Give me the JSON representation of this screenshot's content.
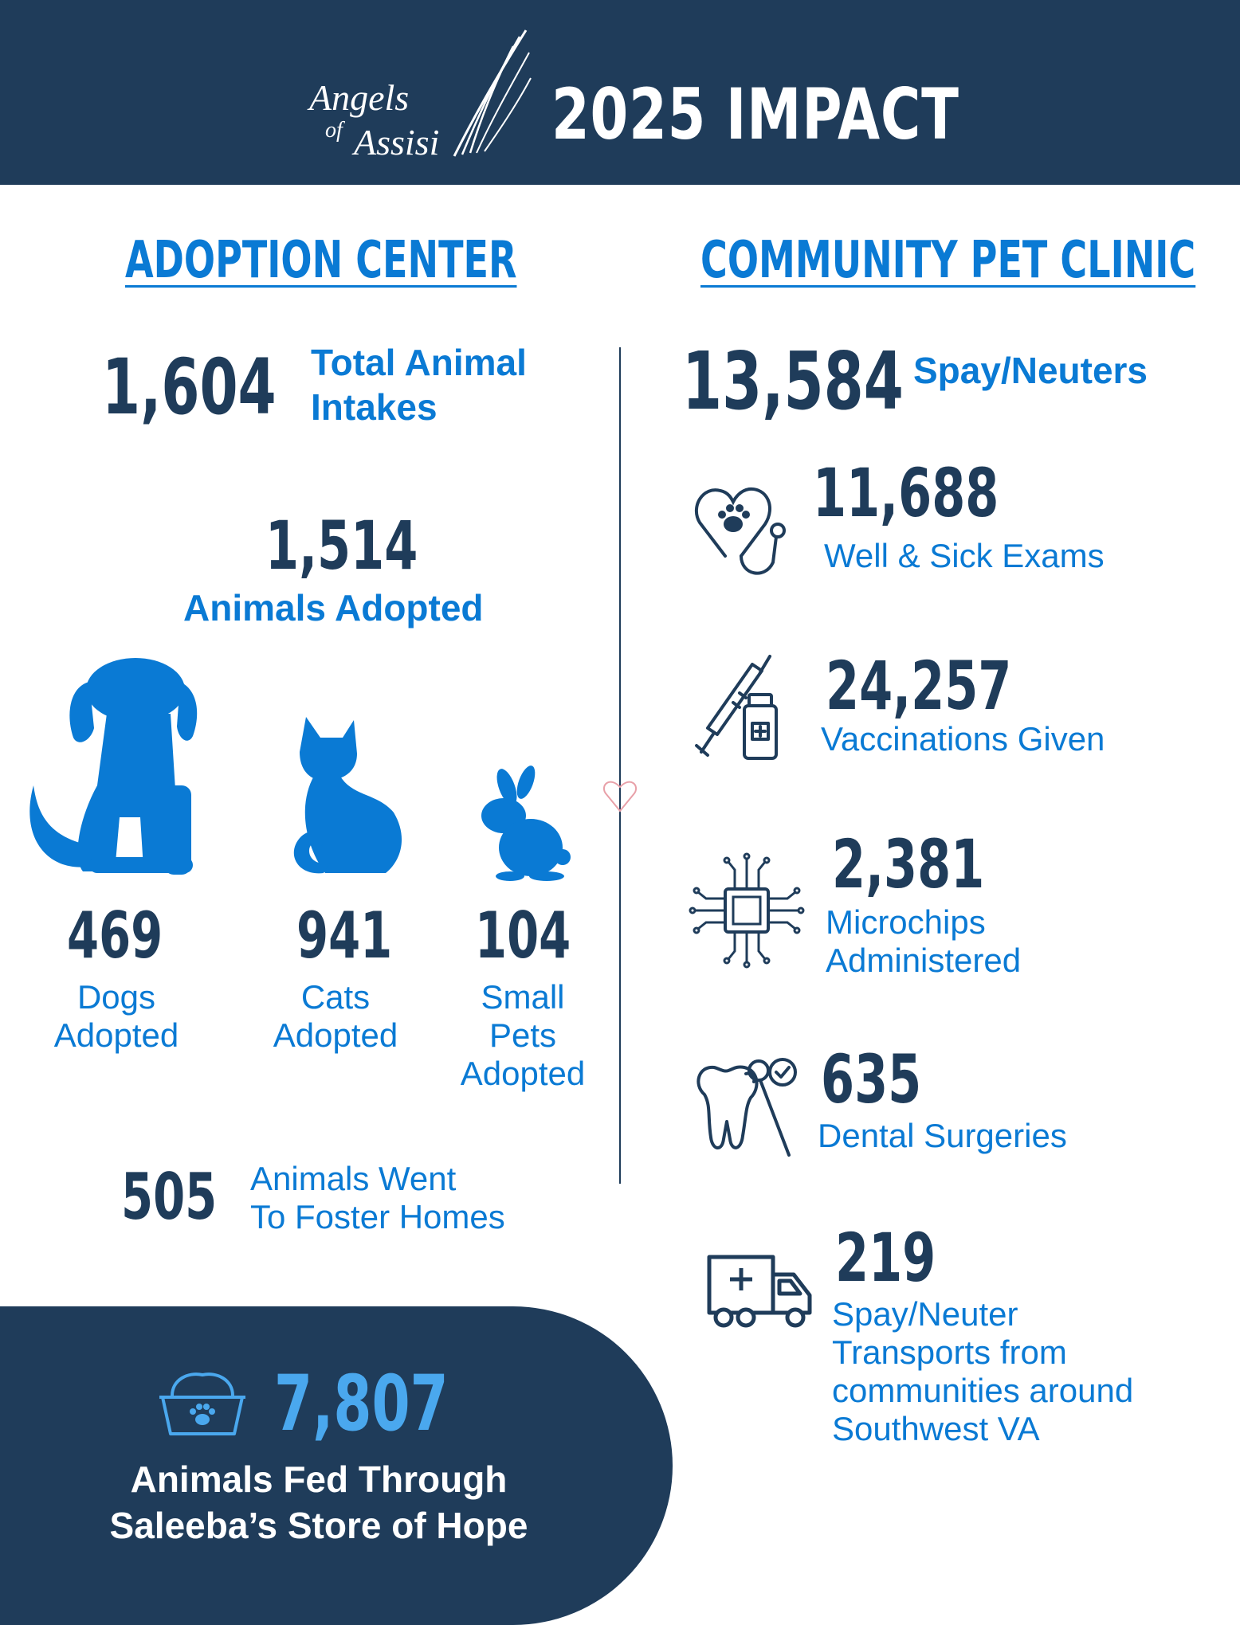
{
  "header": {
    "logo_line1": "Angels",
    "logo_line2": "of",
    "logo_line3": "Assisi",
    "title": "2025 IMPACT"
  },
  "adoption_center": {
    "heading": "ADOPTION CENTER",
    "total_intakes": {
      "value": "1,604",
      "label_line1": "Total Animal",
      "label_line2": "Intakes"
    },
    "adopted": {
      "value": "1,514",
      "label": "Animals Adopted"
    },
    "dogs": {
      "value": "469",
      "label_line1": "Dogs",
      "label_line2": "Adopted"
    },
    "cats": {
      "value": "941",
      "label_line1": "Cats",
      "label_line2": "Adopted"
    },
    "small_pets": {
      "value": "104",
      "label_line1": "Small",
      "label_line2": "Pets",
      "label_line3": "Adopted"
    },
    "foster": {
      "value": "505",
      "label_line1": "Animals Went",
      "label_line2": "To Foster Homes"
    }
  },
  "community_clinic": {
    "heading": "COMMUNITY PET CLINIC",
    "spay_neuter": {
      "value": "13,584",
      "label": "Spay/Neuters"
    },
    "exams": {
      "value": "11,688",
      "label": "Well & Sick Exams",
      "icon": "stethoscope-paw-icon"
    },
    "vaccinations": {
      "value": "24,257",
      "label": "Vaccinations Given",
      "icon": "syringe-vial-icon"
    },
    "microchips": {
      "value": "2,381",
      "label_line1": "Microchips",
      "label_line2": "Administered",
      "icon": "microchip-icon"
    },
    "dental": {
      "value": "635",
      "label": "Dental Surgeries",
      "icon": "tooth-mirror-icon"
    },
    "transports": {
      "value": "219",
      "label_line1": "Spay/Neuter",
      "label_line2": "Transports from",
      "label_line3": "communities around",
      "label_line4": "Southwest VA",
      "icon": "van-icon"
    }
  },
  "food_bank": {
    "value": "7,807",
    "label_line1": "Animals Fed Through",
    "label_line2": "Saleeba’s Store of Hope",
    "icon": "pet-food-bowl-icon"
  },
  "colors": {
    "navy": "#1f3c5a",
    "blue": "#0a7ad4",
    "light_blue": "#4aa8ee",
    "white": "#ffffff"
  }
}
